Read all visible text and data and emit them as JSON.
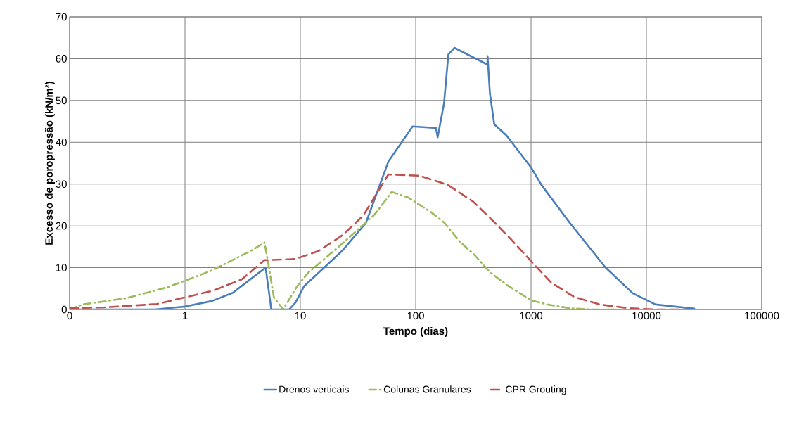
{
  "chart_data": {
    "type": "line",
    "xlabel": "Tempo (dias)",
    "ylabel": "Excesso de poropressão (kN/m²)",
    "log": "x",
    "grid": true,
    "legend": "bottom",
    "marker": "none",
    "xlim": [
      0.1,
      100000
    ],
    "xticks": [
      {
        "value": 0.1,
        "label": "0"
      },
      1,
      10,
      100,
      1000,
      10000,
      100000
    ],
    "ylim": [
      0,
      70
    ],
    "yticks": [
      0,
      10,
      20,
      30,
      40,
      50,
      60,
      70
    ],
    "series": [
      {
        "name": "Drenos verticais",
        "color": "#4a7ebb",
        "line_style": "solid",
        "x": [
          0.1,
          0.55,
          1,
          1.7,
          2.6,
          3.6,
          5,
          5.6,
          8,
          9.1,
          10.8,
          23,
          37,
          58,
          94,
          150,
          155,
          176,
          192,
          217,
          418,
          420,
          440,
          480,
          610,
          1000,
          1230,
          2170,
          4400,
          7600,
          12000,
          26000
        ],
        "values": [
          0,
          0,
          0.7,
          2,
          4,
          7,
          10,
          0,
          0,
          1.7,
          5.6,
          14,
          20.7,
          35.4,
          43.8,
          43.4,
          41.2,
          49.3,
          61,
          62.6,
          58.6,
          60.6,
          51.7,
          44.3,
          41.7,
          34,
          29.8,
          20.7,
          10.1,
          3.9,
          1.2,
          0.2
        ]
      },
      {
        "name": "Colunas Granulares",
        "color": "#9bbb59",
        "line_style": "dashdot",
        "x": [
          0.1,
          0.13,
          0.31,
          0.72,
          1.7,
          3.7,
          4.9,
          5.4,
          5.9,
          7.1,
          9.4,
          11.7,
          23,
          44,
          62,
          86,
          137,
          178,
          240,
          325,
          440,
          630,
          1000,
          1380,
          2170,
          3300,
          5500
        ],
        "values": [
          0,
          1.2,
          2.7,
          5.4,
          9.3,
          14,
          16,
          9.3,
          2.9,
          0,
          5.6,
          8.8,
          15.7,
          22.7,
          28.1,
          26.8,
          23.2,
          20.7,
          16.3,
          13,
          8.9,
          5.7,
          2.2,
          1.2,
          0.3,
          0,
          0
        ]
      },
      {
        "name": "CPR Grouting",
        "color": "#c0504d",
        "line_style": "dashed",
        "x": [
          0.1,
          0.2,
          0.57,
          1.75,
          3.1,
          4.9,
          7.9,
          9.1,
          14.4,
          23,
          35,
          58,
          108,
          190,
          315,
          460,
          670,
          1020,
          1500,
          2370,
          3950,
          7000,
          12000,
          22000
        ],
        "values": [
          0.3,
          0.5,
          1.3,
          4.5,
          7.2,
          11.8,
          12,
          12.1,
          14,
          17.7,
          22.4,
          32.3,
          32,
          29.8,
          25.8,
          21.4,
          16.8,
          11.3,
          6.4,
          3,
          1.2,
          0.3,
          0,
          0
        ]
      }
    ]
  }
}
